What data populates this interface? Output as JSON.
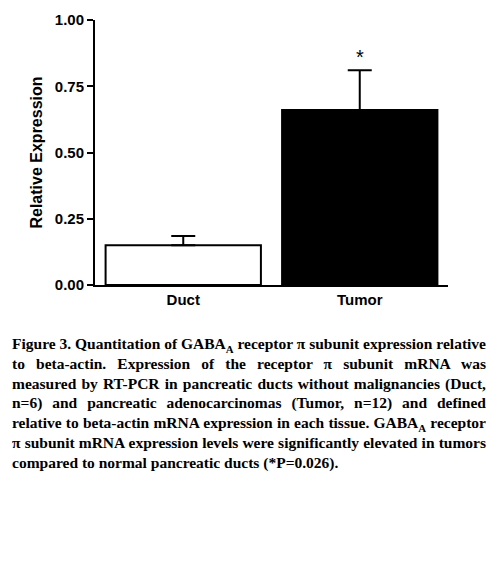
{
  "chart_data": {
    "type": "bar",
    "categories": [
      "Duct",
      "Tumor"
    ],
    "values": [
      0.15,
      0.66
    ],
    "errors": [
      0.035,
      0.15
    ],
    "colors": [
      "#ffffff",
      "#000000"
    ],
    "y_label": "Relative Expression",
    "ylim": [
      0,
      1
    ],
    "yticks": [
      {
        "value": 0,
        "label": "0.00"
      },
      {
        "value": 0.25,
        "label": "0.25"
      },
      {
        "value": 0.5,
        "label": "0.50"
      },
      {
        "value": 0.75,
        "label": "0.75"
      },
      {
        "value": 1,
        "label": "1.00"
      }
    ],
    "grid": false,
    "annotations": [
      {
        "category": "Tumor",
        "text": "*"
      }
    ]
  },
  "caption": [
    {
      "text": "Figure 3.",
      "bold": true
    },
    {
      "text": " Quantitation of GABA"
    },
    {
      "text": "A",
      "sub": true
    },
    {
      "text": " receptor π subunit expression relative to beta-actin. Expression of the receptor π subunit mRNA was measured by RT-PCR in pancreatic ducts without malignancies (Duct, n=6) and pancreatic adenocarcinomas (Tumor, n=12) and defined relative to beta-actin mRNA expression in each tissue. GABA"
    },
    {
      "text": "A",
      "sub": true
    },
    {
      "text": " receptor π subunit mRNA expression levels were significantly elevated in tumors compared to normal pancreatic ducts (*P=0.026)."
    }
  ]
}
